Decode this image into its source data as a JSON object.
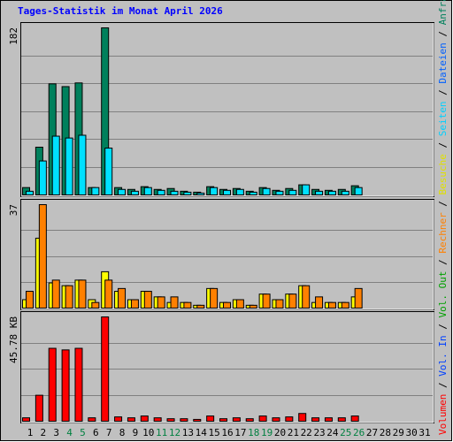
{
  "chart_data": [
    {
      "type": "bar",
      "title": "Tages-Statistik im Monat April 2026",
      "ylim": [
        0,
        182
      ],
      "yticks": [
        182
      ],
      "series": [
        {
          "color": "#00805c",
          "values": [
            8,
            52,
            121,
            118,
            122,
            8,
            182,
            8,
            6,
            9,
            6,
            7,
            4,
            3,
            9,
            6,
            7,
            4,
            8,
            5,
            7,
            11,
            6,
            5,
            6,
            10,
            null,
            null,
            null,
            null,
            null
          ]
        },
        {
          "color": "#00e0ff",
          "values": [
            4,
            37,
            64,
            62,
            65,
            8,
            51,
            6,
            4,
            8,
            5,
            4,
            3,
            2,
            8,
            5,
            6,
            3,
            7,
            4,
            5,
            11,
            4,
            4,
            4,
            8,
            null,
            null,
            null,
            null,
            null
          ]
        }
      ]
    },
    {
      "type": "bar",
      "ylim": [
        0,
        37
      ],
      "yticks": [
        37
      ],
      "series": [
        {
          "color": "#ffff00",
          "values": [
            3,
            25,
            9,
            8,
            10,
            3,
            13,
            6,
            3,
            6,
            4,
            2,
            2,
            1,
            7,
            2,
            3,
            1,
            5,
            3,
            5,
            8,
            2,
            2,
            2,
            4,
            null,
            null,
            null,
            null,
            null
          ]
        },
        {
          "color": "#ff8000",
          "values": [
            6,
            37,
            10,
            8,
            10,
            2,
            10,
            7,
            3,
            6,
            4,
            4,
            2,
            1,
            7,
            2,
            3,
            1,
            5,
            3,
            5,
            8,
            4,
            2,
            2,
            7,
            null,
            null,
            null,
            null,
            null
          ]
        }
      ]
    },
    {
      "type": "bar",
      "ylim": [
        0,
        45.78
      ],
      "yticks": [
        {
          "value": 45.78,
          "label": "45.78 KB"
        }
      ],
      "categories": [
        "1",
        "2",
        "3",
        "4",
        "5",
        "6",
        "7",
        "8",
        "9",
        "10",
        "11",
        "12",
        "13",
        "14",
        "15",
        "16",
        "17",
        "18",
        "19",
        "20",
        "21",
        "22",
        "23",
        "24",
        "25",
        "26",
        "27",
        "28",
        "29",
        "30",
        "31"
      ],
      "category_colors": [
        "#000",
        "#000",
        "#000",
        "#008040",
        "#008040",
        "#000",
        "#000",
        "#000",
        "#000",
        "#000",
        "#008040",
        "#008040",
        "#000",
        "#000",
        "#000",
        "#000",
        "#000",
        "#008040",
        "#008040",
        "#000",
        "#000",
        "#000",
        "#000",
        "#000",
        "#008040",
        "#008040",
        "#000",
        "#000",
        "#000",
        "#000",
        "#000"
      ],
      "series": [
        {
          "color": "#ff0000",
          "values": [
            1.5,
            11.4,
            32,
            31.3,
            32,
            1.5,
            45.78,
            1.9,
            1.5,
            2.3,
            1.5,
            1.1,
            1.1,
            0.8,
            2.3,
            1.1,
            1.5,
            1.1,
            2.3,
            1.5,
            1.9,
            3.4,
            1.5,
            1.5,
            1.5,
            2.3,
            null,
            null,
            null,
            null,
            null
          ]
        }
      ]
    }
  ],
  "legend_separator": " / ",
  "legend": [
    {
      "name": "Volumen",
      "color": "#ff0000"
    },
    {
      "name": "Vol. In",
      "color": "#0040ff"
    },
    {
      "name": "Vol. Out",
      "color": "#00a000"
    },
    {
      "name": "Rechner",
      "color": "#ff8000"
    },
    {
      "name": "Besuche",
      "color": "#e0e000"
    },
    {
      "name": "Seiten",
      "color": "#00d0ff"
    },
    {
      "name": "Dateien",
      "color": "#0060ff"
    },
    {
      "name": "Anfragen",
      "color": "#00805c"
    }
  ]
}
